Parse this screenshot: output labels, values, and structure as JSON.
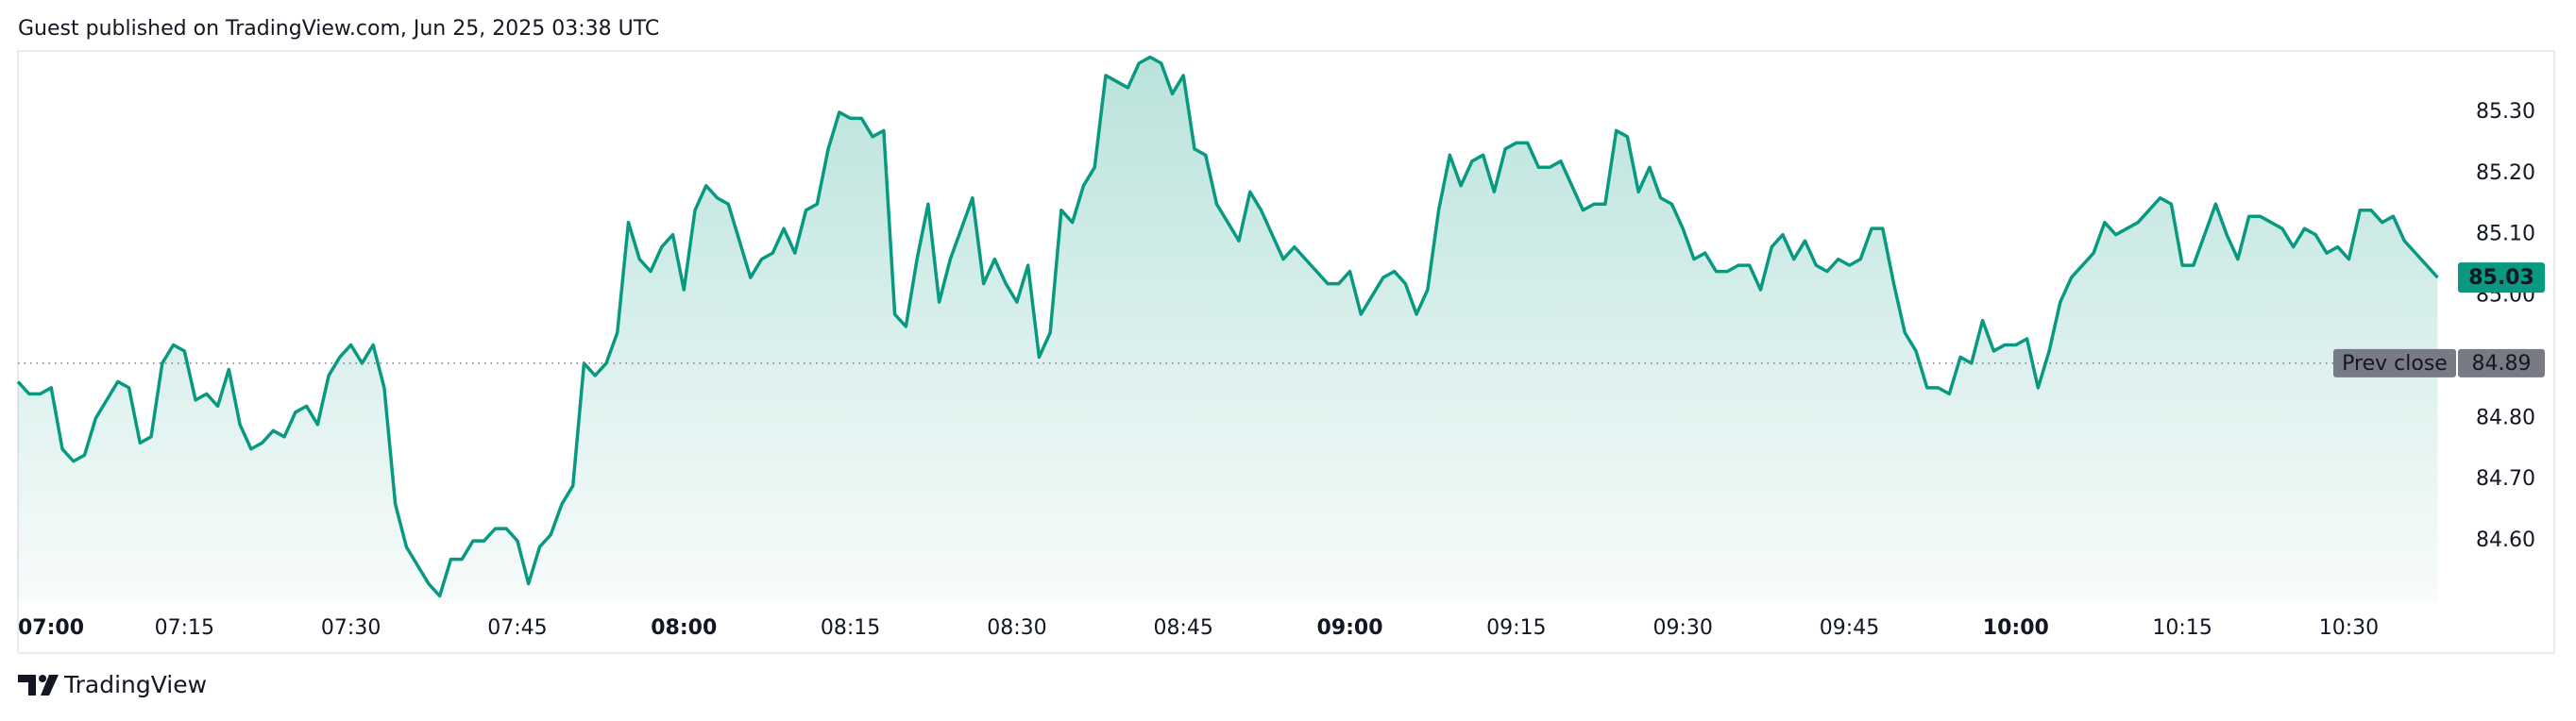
{
  "header": "Guest published on TradingView.com, Jun 25, 2025 03:38 UTC",
  "footer": "TradingView",
  "chart_data": {
    "type": "line",
    "color": "#089981",
    "x": [
      "07:00",
      "07:01",
      "07:02",
      "07:03",
      "07:04",
      "07:05",
      "07:06",
      "07:07",
      "07:08",
      "07:09",
      "07:10",
      "07:11",
      "07:12",
      "07:13",
      "07:14",
      "07:15",
      "07:16",
      "07:17",
      "07:18",
      "07:19",
      "07:20",
      "07:21",
      "07:22",
      "07:23",
      "07:24",
      "07:25",
      "07:26",
      "07:27",
      "07:28",
      "07:29",
      "07:30",
      "07:31",
      "07:32",
      "07:33",
      "07:34",
      "07:35",
      "07:36",
      "07:37",
      "07:38",
      "07:39",
      "07:40",
      "07:41",
      "07:42",
      "07:43",
      "07:44",
      "07:45",
      "07:46",
      "07:47",
      "07:48",
      "07:49",
      "07:50",
      "07:51",
      "07:52",
      "07:53",
      "07:54",
      "07:55",
      "07:56",
      "07:57",
      "07:58",
      "07:59",
      "08:00",
      "08:01",
      "08:02",
      "08:03",
      "08:04",
      "08:05",
      "08:06",
      "08:07",
      "08:08",
      "08:09",
      "08:10",
      "08:11",
      "08:12",
      "08:13",
      "08:14",
      "08:15",
      "08:16",
      "08:17",
      "08:18",
      "08:19",
      "08:20",
      "08:21",
      "08:22",
      "08:23",
      "08:24",
      "08:25",
      "08:26",
      "08:27",
      "08:28",
      "08:29",
      "08:30",
      "08:31",
      "08:32",
      "08:33",
      "08:34",
      "08:35",
      "08:36",
      "08:37",
      "08:38",
      "08:39",
      "08:40",
      "08:41",
      "08:42",
      "08:43",
      "08:44",
      "08:45",
      "08:46",
      "08:47",
      "08:48",
      "08:49",
      "08:50",
      "08:51",
      "08:52",
      "08:53",
      "08:54",
      "08:55",
      "08:56",
      "08:57",
      "08:58",
      "08:59",
      "09:00",
      "09:01",
      "09:02",
      "09:03",
      "09:04",
      "09:05",
      "09:06",
      "09:07",
      "09:08",
      "09:09",
      "09:10",
      "09:11",
      "09:12",
      "09:13",
      "09:14",
      "09:15",
      "09:16",
      "09:17",
      "09:18",
      "09:19",
      "09:20",
      "09:21",
      "09:22",
      "09:23",
      "09:24",
      "09:25",
      "09:26",
      "09:27",
      "09:28",
      "09:29",
      "09:30",
      "09:31",
      "09:32",
      "09:33",
      "09:34",
      "09:35",
      "09:36",
      "09:37",
      "09:38",
      "09:39",
      "09:40",
      "09:41",
      "09:42",
      "09:43",
      "09:44",
      "09:45",
      "09:46",
      "09:47",
      "09:48",
      "09:49",
      "09:50",
      "09:51",
      "09:52",
      "09:53",
      "09:54",
      "09:55",
      "09:56",
      "09:57",
      "09:58",
      "09:59",
      "10:00",
      "10:01",
      "10:02",
      "10:03",
      "10:04",
      "10:05",
      "10:06",
      "10:07",
      "10:08",
      "10:09",
      "10:10",
      "10:11",
      "10:12",
      "10:13",
      "10:14",
      "10:15",
      "10:16",
      "10:17",
      "10:18",
      "10:19",
      "10:20",
      "10:21",
      "10:22",
      "10:23",
      "10:24",
      "10:25",
      "10:26",
      "10:27",
      "10:28",
      "10:29",
      "10:30",
      "10:31",
      "10:32",
      "10:33",
      "10:34",
      "10:35",
      "10:36",
      "10:37",
      "10:38"
    ],
    "values": [
      84.86,
      84.84,
      84.84,
      84.85,
      84.75,
      84.73,
      84.74,
      84.8,
      84.83,
      84.86,
      84.85,
      84.76,
      84.77,
      84.89,
      84.92,
      84.91,
      84.83,
      84.84,
      84.82,
      84.88,
      84.79,
      84.75,
      84.76,
      84.78,
      84.77,
      84.81,
      84.82,
      84.79,
      84.87,
      84.9,
      84.92,
      84.89,
      84.92,
      84.85,
      84.66,
      84.59,
      84.56,
      84.53,
      84.51,
      84.57,
      84.57,
      84.6,
      84.6,
      84.62,
      84.62,
      84.6,
      84.53,
      84.59,
      84.61,
      84.66,
      84.69,
      84.89,
      84.87,
      84.89,
      84.94,
      85.12,
      85.06,
      85.04,
      85.08,
      85.1,
      85.01,
      85.14,
      85.18,
      85.16,
      85.15,
      85.09,
      85.03,
      85.06,
      85.07,
      85.11,
      85.07,
      85.14,
      85.15,
      85.24,
      85.3,
      85.29,
      85.29,
      85.26,
      85.27,
      84.97,
      84.95,
      85.06,
      85.15,
      84.99,
      85.06,
      85.11,
      85.16,
      85.02,
      85.06,
      85.02,
      84.99,
      85.05,
      84.9,
      84.94,
      85.14,
      85.12,
      85.18,
      85.21,
      85.36,
      85.35,
      85.34,
      85.38,
      85.39,
      85.38,
      85.33,
      85.36,
      85.24,
      85.23,
      85.15,
      85.12,
      85.09,
      85.17,
      85.14,
      85.1,
      85.06,
      85.08,
      85.06,
      85.04,
      85.02,
      85.02,
      85.04,
      84.97,
      85.0,
      85.03,
      85.04,
      85.02,
      84.97,
      85.01,
      85.14,
      85.23,
      85.18,
      85.22,
      85.23,
      85.17,
      85.24,
      85.25,
      85.25,
      85.21,
      85.21,
      85.22,
      85.18,
      85.14,
      85.15,
      85.15,
      85.27,
      85.26,
      85.17,
      85.21,
      85.16,
      85.15,
      85.11,
      85.06,
      85.07,
      85.04,
      85.04,
      85.05,
      85.05,
      85.01,
      85.08,
      85.1,
      85.06,
      85.09,
      85.05,
      85.04,
      85.06,
      85.05,
      85.06,
      85.11,
      85.11,
      85.02,
      84.94,
      84.91,
      84.85,
      84.85,
      84.84,
      84.9,
      84.89,
      84.96,
      84.91,
      84.92,
      84.92,
      84.93,
      84.85,
      84.91,
      84.99,
      85.03,
      85.05,
      85.07,
      85.12,
      85.1,
      85.11,
      85.12,
      85.14,
      85.16,
      85.15,
      85.05,
      85.05,
      85.1,
      85.15,
      85.1,
      85.06,
      85.13,
      85.13,
      85.12,
      85.11,
      85.08,
      85.11,
      85.1,
      85.07,
      85.08,
      85.06,
      85.14,
      85.14,
      85.12,
      85.13,
      85.09,
      85.07,
      85.05,
      85.03
    ],
    "xlim": [
      "07:00",
      "10:40"
    ],
    "xticks": [
      "07:00",
      "07:15",
      "07:30",
      "07:45",
      "08:00",
      "08:15",
      "08:30",
      "08:45",
      "09:00",
      "09:15",
      "09:30",
      "09:45",
      "10:00",
      "10:15",
      "10:30"
    ],
    "ylim": [
      84.5,
      85.4
    ],
    "yticks": [
      {
        "value": 84.6,
        "label": "84.60"
      },
      {
        "value": 84.7,
        "label": "84.70"
      },
      {
        "value": 84.8,
        "label": "84.80"
      },
      {
        "value": 85.0,
        "label": "85.00"
      },
      {
        "value": 85.1,
        "label": "85.10"
      },
      {
        "value": 85.2,
        "label": "85.20"
      },
      {
        "value": 85.3,
        "label": "85.30"
      }
    ],
    "prev_close": {
      "label": "Prev close",
      "value": 84.89,
      "color": "#787b86"
    }
  }
}
